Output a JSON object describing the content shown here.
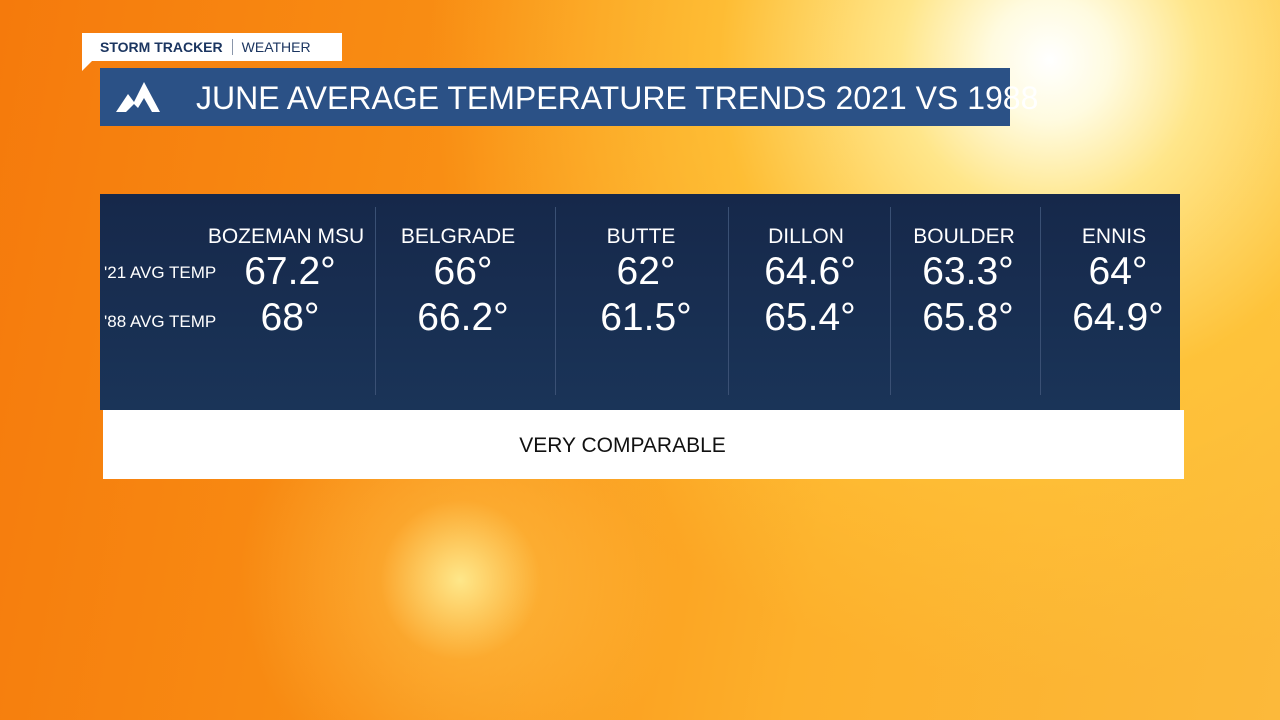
{
  "brand": {
    "name": "STORM TRACKER",
    "section": "WEATHER"
  },
  "header": {
    "title": "JUNE AVERAGE TEMPERATURE TRENDS 2021 VS 1988"
  },
  "table": {
    "row_labels": [
      "'21 AVG TEMP",
      "'88 AVG TEMP"
    ],
    "columns": [
      {
        "name": "BOZEMAN MSU",
        "values": [
          "67.2°",
          "68°"
        ]
      },
      {
        "name": "BELGRADE",
        "values": [
          "66°",
          "66.2°"
        ]
      },
      {
        "name": "BUTTE",
        "values": [
          "62°",
          "61.5°"
        ]
      },
      {
        "name": "DILLON",
        "values": [
          "64.6°",
          "65.4°"
        ]
      },
      {
        "name": "BOULDER",
        "values": [
          "63.3°",
          "65.8°"
        ]
      },
      {
        "name": "ENNIS",
        "values": [
          "64°",
          "64.9°"
        ]
      }
    ]
  },
  "footer": {
    "text": "VERY COMPARABLE"
  }
}
